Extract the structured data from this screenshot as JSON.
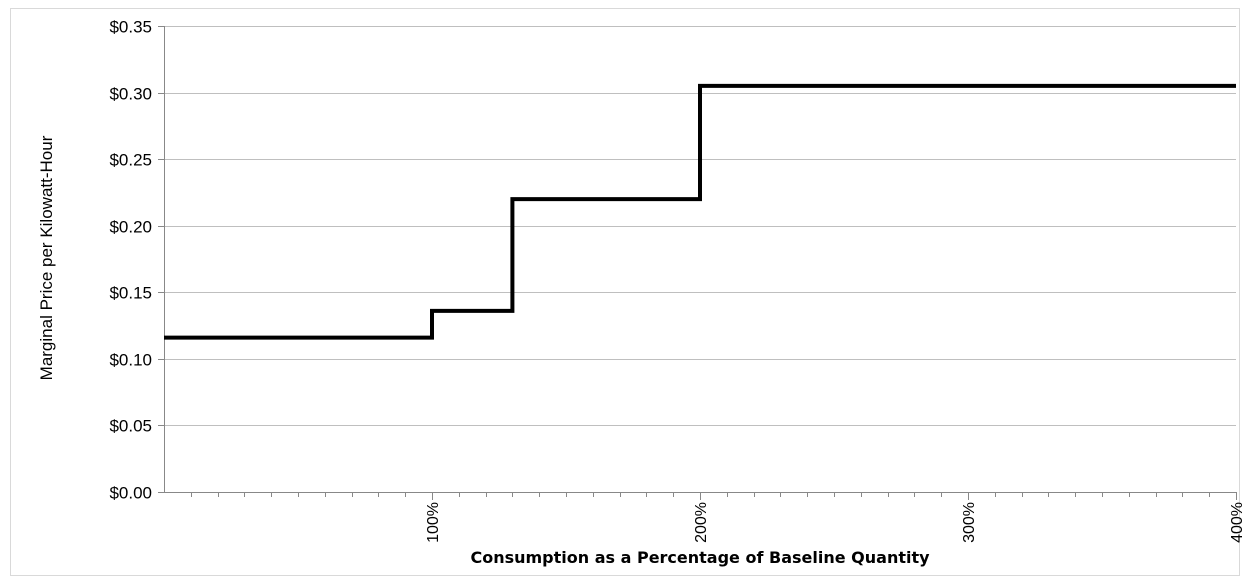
{
  "chart_data": {
    "type": "line",
    "title": "",
    "xlabel": "Consumption as a Percentage of Baseline Quantity",
    "ylabel": "Marginal Price per Kilowatt-Hour",
    "xlim": [
      0,
      400
    ],
    "ylim": [
      0,
      0.35
    ],
    "yticks": [
      0,
      0.05,
      0.1,
      0.15,
      0.2,
      0.25,
      0.3,
      0.35
    ],
    "ytick_labels": [
      "$0.00",
      "$0.05",
      "$0.10",
      "$0.15",
      "$0.20",
      "$0.25",
      "$0.30",
      "$0.35"
    ],
    "xticks": [
      100,
      200,
      300,
      400
    ],
    "xtick_labels": [
      "100%",
      "200%",
      "300%",
      "400%"
    ],
    "x_minor_tick_step": 10,
    "grid": "horizontal",
    "legend": "none",
    "line_color": "#000000",
    "grid_color": "#bfbfbf",
    "series": [
      {
        "x": [
          0,
          100,
          100,
          130,
          130,
          200,
          200,
          400
        ],
        "y": [
          0.116,
          0.116,
          0.136,
          0.136,
          0.22,
          0.22,
          0.305,
          0.305
        ]
      }
    ]
  }
}
